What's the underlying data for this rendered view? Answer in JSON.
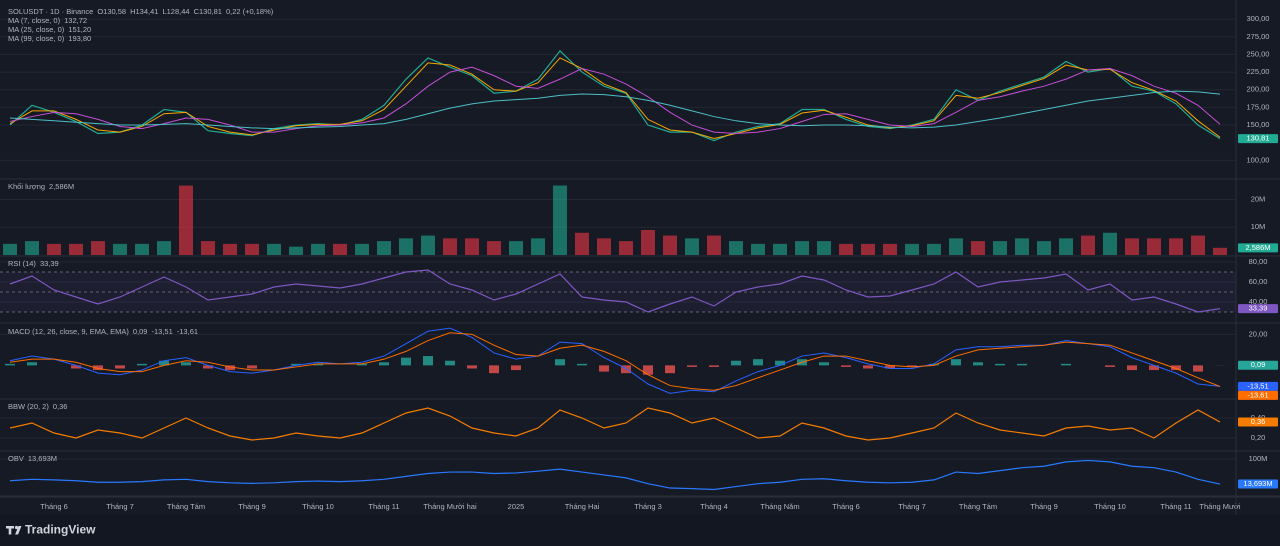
{
  "x_labels": [
    null,
    null,
    "Tháng 6",
    null,
    null,
    "Tháng 7",
    null,
    null,
    "Tháng Tám",
    null,
    null,
    "Tháng 9",
    null,
    null,
    "Tháng 10",
    null,
    null,
    "Tháng 11",
    null,
    null,
    "Tháng Mười hai",
    null,
    null,
    "2025",
    null,
    null,
    "Tháng Hai",
    null,
    null,
    "Tháng 3",
    null,
    null,
    "Tháng 4",
    null,
    null,
    "Tháng Năm",
    null,
    null,
    "Tháng 6",
    null,
    null,
    "Tháng 7",
    null,
    null,
    "Tháng Tám",
    null,
    null,
    "Tháng 9",
    null,
    null,
    "Tháng 10",
    null,
    null,
    "Tháng 11",
    null,
    "Tháng Mười"
  ],
  "chart_data": [
    {
      "type": "line",
      "title": "SOLUSDT · 1D · Binance",
      "ohlc": [
        {
          "value": 130.58,
          "label": "O130,58"
        },
        {
          "value": 134.41,
          "label": "H134,41"
        },
        {
          "value": 128.44,
          "label": "L128,44"
        },
        {
          "value": 130.81,
          "label": "C130,81"
        },
        {
          "value": 0.22,
          "label": "0,22 (+0,18%)"
        }
      ],
      "color": "#22ab94",
      "last_label": "130,81",
      "values": [
        150,
        178,
        168,
        155,
        138,
        140,
        150,
        172,
        168,
        142,
        138,
        135,
        145,
        150,
        152,
        150,
        158,
        178,
        215,
        245,
        232,
        220,
        195,
        198,
        215,
        255,
        225,
        205,
        195,
        150,
        140,
        140,
        128,
        140,
        148,
        152,
        172,
        172,
        158,
        148,
        145,
        150,
        158,
        200,
        185,
        198,
        208,
        218,
        240,
        225,
        230,
        205,
        198,
        180,
        150,
        130.81
      ],
      "series": [
        {
          "name": "MA (7, close, 0)",
          "color": "#f7a600",
          "legend_value": "132,72",
          "values": [
            152,
            170,
            170,
            158,
            143,
            140,
            148,
            166,
            168,
            148,
            140,
            136,
            143,
            149,
            151,
            151,
            156,
            172,
            205,
            238,
            235,
            222,
            200,
            198,
            210,
            245,
            230,
            208,
            196,
            158,
            143,
            140,
            131,
            138,
            146,
            151,
            167,
            171,
            161,
            150,
            146,
            149,
            156,
            192,
            188,
            196,
            206,
            216,
            235,
            228,
            229,
            210,
            199,
            184,
            156,
            132.72
          ]
        },
        {
          "name": "MA (25, close, 0)",
          "color": "#c44fd6",
          "legend_value": "151,20",
          "values": [
            155,
            162,
            168,
            166,
            158,
            148,
            145,
            152,
            160,
            158,
            150,
            140,
            140,
            145,
            149,
            150,
            153,
            160,
            180,
            205,
            225,
            232,
            220,
            205,
            202,
            215,
            230,
            222,
            208,
            190,
            168,
            150,
            140,
            138,
            140,
            145,
            155,
            165,
            166,
            158,
            150,
            148,
            152,
            168,
            185,
            190,
            198,
            205,
            215,
            228,
            230,
            220,
            205,
            195,
            178,
            151.2
          ]
        },
        {
          "name": "MA (99, close, 0)",
          "color": "#4dbfc7",
          "legend_value": "193,80",
          "values": [
            160,
            158,
            156,
            154,
            152,
            150,
            150,
            151,
            152,
            150,
            148,
            146,
            145,
            146,
            147,
            148,
            150,
            152,
            158,
            166,
            174,
            180,
            184,
            186,
            188,
            192,
            194,
            193,
            190,
            185,
            178,
            170,
            162,
            156,
            152,
            150,
            149,
            150,
            150,
            149,
            147,
            146,
            147,
            150,
            155,
            160,
            166,
            172,
            178,
            184,
            188,
            192,
            196,
            198,
            197,
            193.8
          ]
        }
      ],
      "ylim": [
        75,
        320
      ],
      "yticks": [
        {
          "value": 100,
          "label": "100,00"
        },
        {
          "value": 150,
          "label": "150,00"
        },
        {
          "value": 175,
          "label": "175,00"
        },
        {
          "value": 200,
          "label": "200,00"
        },
        {
          "value": 225,
          "label": "225,00"
        },
        {
          "value": 250,
          "label": "250,00"
        },
        {
          "value": 275,
          "label": "275,00"
        },
        {
          "value": 300,
          "label": "300,00"
        }
      ]
    },
    {
      "type": "bar",
      "title": "Khối lượng",
      "color": "#22ab94",
      "up_color": "#22ab94",
      "down_color": "#f23645",
      "last_label": "2,586M",
      "values": [
        4,
        5,
        4,
        4,
        5,
        4,
        4,
        5,
        25,
        5,
        4,
        4,
        4,
        3,
        4,
        4,
        4,
        5,
        6,
        7,
        6,
        6,
        5,
        5,
        6,
        25,
        8,
        6,
        5,
        9,
        7,
        6,
        7,
        5,
        4,
        4,
        5,
        5,
        4,
        4,
        4,
        4,
        4,
        6,
        5,
        5,
        6,
        5,
        6,
        7,
        8,
        6,
        6,
        6,
        7,
        2.586
      ],
      "ylim": [
        0,
        27
      ],
      "yticks": [
        {
          "value": 10,
          "label": "10M"
        },
        {
          "value": 20,
          "label": "20M"
        }
      ]
    },
    {
      "type": "line",
      "title": "RSI (14)",
      "color": "#7e57c2",
      "last_label": "33,39",
      "bands": [
        70,
        50,
        30
      ],
      "values": [
        58,
        66,
        52,
        45,
        38,
        45,
        55,
        65,
        55,
        42,
        45,
        48,
        55,
        58,
        56,
        54,
        58,
        64,
        70,
        72,
        58,
        52,
        42,
        48,
        58,
        68,
        45,
        42,
        40,
        30,
        38,
        45,
        36,
        50,
        55,
        58,
        66,
        62,
        52,
        45,
        46,
        52,
        58,
        70,
        55,
        60,
        62,
        64,
        68,
        52,
        58,
        42,
        45,
        38,
        30,
        33.39
      ],
      "ylim": [
        20,
        85
      ],
      "yticks": [
        {
          "value": 40,
          "label": "40,00"
        },
        {
          "value": 60,
          "label": "60,00"
        },
        {
          "value": 80,
          "label": "80,00"
        }
      ]
    },
    {
      "type": "line",
      "title": "MACD (12, 26, close, 9, EMA, EMA)",
      "series": [
        {
          "kind": "histogram",
          "color": "#26a69a",
          "up_color": "#26a69a",
          "down_color": "#ef5350",
          "last_label": "0,09",
          "values": [
            1,
            2,
            0,
            -2,
            -3,
            -2,
            1,
            3,
            2,
            -2,
            -3,
            -2,
            0,
            1,
            1,
            0,
            1,
            2,
            5,
            6,
            3,
            -2,
            -5,
            -3,
            0,
            4,
            1,
            -4,
            -5,
            -6,
            -5,
            -1,
            -1,
            3,
            4,
            3,
            4,
            2,
            -1,
            -2,
            -2,
            -1,
            1,
            4,
            2,
            1,
            1,
            0,
            1,
            0,
            -1,
            -3,
            -3,
            -3,
            -4,
            0.09
          ]
        },
        {
          "color": "#2962ff",
          "last_label": "-13,51",
          "values": [
            3,
            6,
            4,
            0,
            -5,
            -6,
            -3,
            3,
            5,
            0,
            -4,
            -5,
            -3,
            0,
            2,
            1,
            2,
            6,
            14,
            22,
            24,
            18,
            8,
            4,
            6,
            15,
            14,
            5,
            -2,
            -12,
            -18,
            -16,
            -17,
            -10,
            -4,
            0,
            6,
            8,
            5,
            1,
            -2,
            -2,
            1,
            10,
            12,
            12,
            13,
            13,
            16,
            14,
            12,
            5,
            0,
            -5,
            -12,
            -13.51
          ]
        },
        {
          "color": "#ff6d00",
          "last_label": "-13,61",
          "values": [
            2,
            4,
            4,
            2,
            -2,
            -4,
            -4,
            0,
            3,
            2,
            -1,
            -3,
            -3,
            -1,
            1,
            1,
            1,
            4,
            9,
            16,
            21,
            20,
            13,
            7,
            6,
            11,
            13,
            9,
            3,
            -6,
            -13,
            -15,
            -16,
            -13,
            -8,
            -3,
            2,
            6,
            6,
            3,
            0,
            -1,
            0,
            6,
            10,
            11,
            12,
            13,
            15,
            14,
            13,
            8,
            3,
            -2,
            -8,
            -13.61
          ]
        }
      ],
      "ylim": [
        -21,
        26
      ],
      "yticks": [
        {
          "value": 20,
          "label": "20,00"
        }
      ]
    },
    {
      "type": "line",
      "title": "BBW (20, 2)",
      "color": "#f57c00",
      "last_label": "0,36",
      "values": [
        0.3,
        0.35,
        0.25,
        0.2,
        0.28,
        0.25,
        0.2,
        0.3,
        0.4,
        0.3,
        0.22,
        0.18,
        0.2,
        0.25,
        0.22,
        0.2,
        0.25,
        0.35,
        0.45,
        0.5,
        0.42,
        0.3,
        0.25,
        0.22,
        0.3,
        0.48,
        0.4,
        0.3,
        0.35,
        0.5,
        0.45,
        0.35,
        0.4,
        0.3,
        0.2,
        0.22,
        0.35,
        0.3,
        0.22,
        0.18,
        0.2,
        0.25,
        0.3,
        0.45,
        0.35,
        0.28,
        0.25,
        0.22,
        0.3,
        0.32,
        0.28,
        0.3,
        0.2,
        0.35,
        0.48,
        0.36
      ],
      "ylim": [
        0.08,
        0.58
      ],
      "yticks": [
        {
          "value": 0.2,
          "label": "0,20"
        },
        {
          "value": 0.4,
          "label": "0,40"
        }
      ]
    },
    {
      "type": "line",
      "title": "OBV",
      "color": "#2979ff",
      "last_label": "13,693M",
      "values": [
        25,
        30,
        28,
        25,
        20,
        20,
        22,
        28,
        30,
        22,
        18,
        16,
        18,
        22,
        24,
        22,
        25,
        30,
        40,
        50,
        55,
        55,
        50,
        52,
        58,
        65,
        55,
        45,
        35,
        15,
        0,
        -2,
        -5,
        5,
        15,
        20,
        30,
        32,
        25,
        20,
        18,
        20,
        28,
        55,
        50,
        60,
        70,
        75,
        90,
        95,
        90,
        75,
        70,
        55,
        30,
        13.693
      ],
      "ylim": [
        -24,
        124
      ],
      "yticks": [
        {
          "value": 100,
          "label": "100M"
        }
      ]
    }
  ],
  "brand": "TradingView"
}
